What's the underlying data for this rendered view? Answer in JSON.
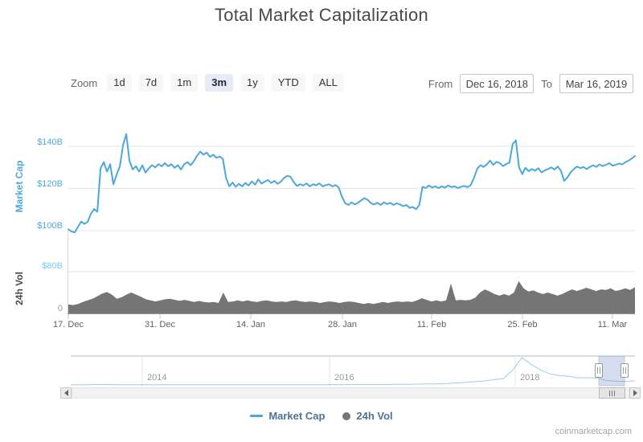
{
  "title": "Total Market Capitalization",
  "attribution": "coinmarketcap.com",
  "toolbar": {
    "zoom_label": "Zoom",
    "buttons": [
      {
        "label": "1d",
        "selected": false
      },
      {
        "label": "7d",
        "selected": false
      },
      {
        "label": "1m",
        "selected": false
      },
      {
        "label": "3m",
        "selected": true
      },
      {
        "label": "1y",
        "selected": false
      },
      {
        "label": "YTD",
        "selected": false
      },
      {
        "label": "ALL",
        "selected": false
      }
    ],
    "from_label": "From",
    "from_value": "Dec 16, 2018",
    "to_label": "To",
    "to_value": "Mar 16, 2019"
  },
  "legend": [
    {
      "name": "Market Cap",
      "marker": "line",
      "color": "#4ca7dc"
    },
    {
      "name": "24h Vol",
      "marker": "circle",
      "color": "#757575"
    }
  ],
  "chart_data": [
    {
      "type": "line",
      "name": "Market Cap",
      "color": "#4ca7dc",
      "unit": "USD billions",
      "ylabel": "Market Cap",
      "yticks": [
        "$100B",
        "$120B",
        "$140B"
      ],
      "ylim": [
        95,
        150
      ],
      "xticks": [
        "17. Dec",
        "31. Dec",
        "14. Jan",
        "28. Jan",
        "11. Feb",
        "25. Feb",
        "11. Mar"
      ],
      "x_range": [
        "Dec 16, 2018",
        "Mar 16, 2019"
      ],
      "grid": "horizontal",
      "values": [
        100.6,
        99.6,
        99.2,
        101.8,
        104.3,
        103.2,
        104.1,
        107.9,
        110.2,
        109.0,
        129.5,
        132.5,
        128.0,
        131.5,
        122.0,
        126.5,
        130.5,
        140.5,
        145.8,
        133.0,
        129.0,
        130.5,
        128.0,
        131.0,
        127.5,
        129.5,
        131.0,
        130.0,
        131.5,
        130.5,
        132.0,
        130.5,
        131.5,
        129.8,
        131.0,
        129.0,
        131.5,
        132.5,
        131.0,
        133.0,
        135.5,
        137.5,
        136.0,
        137.0,
        135.0,
        136.0,
        134.5,
        135.2,
        134.0,
        125.0,
        121.0,
        122.8,
        120.8,
        122.2,
        121.0,
        122.6,
        121.4,
        123.3,
        121.8,
        124.3,
        122.3,
        123.2,
        124.0,
        122.6,
        123.6,
        122.2,
        123.2,
        125.0,
        126.0,
        125.6,
        123.0,
        121.2,
        122.0,
        121.4,
        122.4,
        121.0,
        122.0,
        121.5,
        122.4,
        121.0,
        121.6,
        122.0,
        121.0,
        121.6,
        120.4,
        116.0,
        113.0,
        112.2,
        113.4,
        112.4,
        113.2,
        114.4,
        115.4,
        114.6,
        113.0,
        112.4,
        113.2,
        112.2,
        113.4,
        112.6,
        113.2,
        112.2,
        113.0,
        112.4,
        111.6,
        112.2,
        110.8,
        111.2,
        110.2,
        112.0,
        120.8,
        120.2,
        121.4,
        120.4,
        121.0,
        120.2,
        121.0,
        120.4,
        121.4,
        120.6,
        121.0,
        120.2,
        120.8,
        121.2,
        120.6,
        121.6,
        125.0,
        129.3,
        131.0,
        130.2,
        131.4,
        133.2,
        131.2,
        132.6,
        132.0,
        130.6,
        131.6,
        132.2,
        141.0,
        142.8,
        130.0,
        126.8,
        129.8,
        128.2,
        129.2,
        128.4,
        129.6,
        127.6,
        128.6,
        129.2,
        130.0,
        129.0,
        130.4,
        128.4,
        123.6,
        125.2,
        127.6,
        129.2,
        130.4,
        129.6,
        130.2,
        129.2,
        130.2,
        131.0,
        130.2,
        131.4,
        130.6,
        131.2,
        132.0,
        130.8,
        131.2,
        131.8,
        131.4,
        132.4,
        133.2,
        134.2,
        135.4
      ]
    },
    {
      "type": "area",
      "name": "24h Vol",
      "color": "#757575",
      "unit": "USD billions",
      "ylabel": "24h Vol",
      "yticks": [
        "0",
        "$80B"
      ],
      "ylim": [
        0,
        88
      ],
      "values": [
        17,
        16,
        18,
        22,
        25,
        28,
        33,
        38,
        41,
        36,
        28,
        31,
        36,
        40,
        36,
        32,
        27,
        25,
        23,
        25,
        27,
        28,
        26,
        24,
        26,
        24,
        22,
        24,
        22,
        21,
        22,
        20,
        40,
        22,
        23,
        25,
        23,
        25,
        23,
        22,
        24,
        25,
        23,
        22,
        23,
        22,
        24,
        25,
        23,
        22,
        23,
        22,
        20,
        22,
        23,
        22,
        20,
        22,
        23,
        22,
        20,
        18,
        20,
        18,
        20,
        22,
        20,
        22,
        23,
        22,
        23,
        22,
        25,
        29,
        26,
        23,
        25,
        23,
        25,
        57,
        25,
        26,
        25,
        26,
        30,
        40,
        46,
        42,
        37,
        34,
        37,
        34,
        40,
        62,
        48,
        42,
        44,
        40,
        37,
        40,
        37,
        34,
        37,
        42,
        46,
        43,
        46,
        49,
        46,
        43,
        46,
        45,
        48,
        43,
        45,
        48,
        45,
        50
      ]
    },
    {
      "type": "navigator",
      "years": [
        "2014",
        "2016",
        "2018"
      ],
      "selection": [
        "Dec 16, 2018",
        "Mar 16, 2019"
      ],
      "nav_values": [
        2,
        3,
        8,
        14,
        10,
        7,
        6,
        5,
        5,
        4,
        4,
        4,
        5,
        5,
        5,
        6,
        5,
        5,
        4,
        4,
        4,
        5,
        5,
        6,
        6,
        7,
        7,
        8,
        9,
        10,
        11,
        12,
        12,
        13,
        14,
        17,
        20,
        25,
        28,
        32,
        42,
        60,
        80,
        100,
        120,
        160,
        185,
        450,
        820,
        610,
        440,
        330,
        280,
        255,
        210,
        220,
        205,
        130,
        110,
        103,
        128
      ]
    }
  ]
}
